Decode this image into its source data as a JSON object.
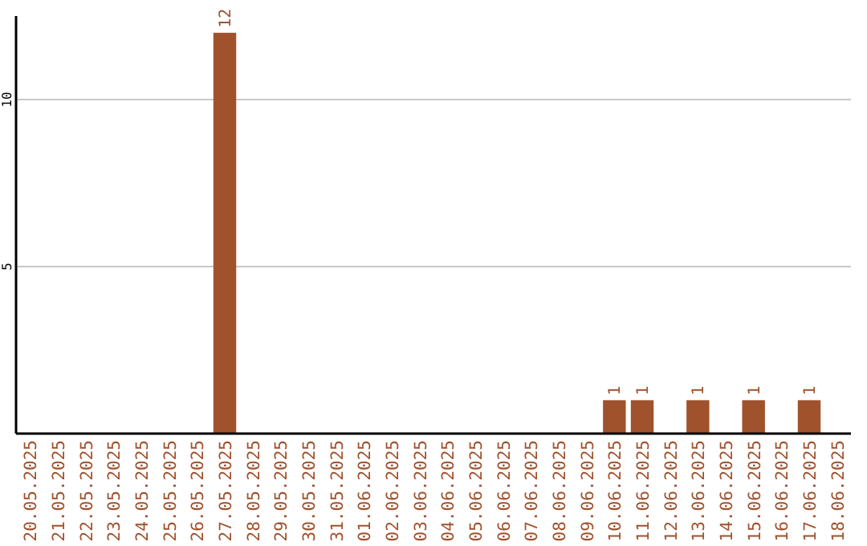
{
  "chart_data": {
    "type": "bar",
    "categories": [
      "20.05.2025",
      "21.05.2025",
      "22.05.2025",
      "23.05.2025",
      "24.05.2025",
      "25.05.2025",
      "26.05.2025",
      "27.05.2025",
      "28.05.2025",
      "29.05.2025",
      "30.05.2025",
      "31.05.2025",
      "01.06.2025",
      "02.06.2025",
      "03.06.2025",
      "04.06.2025",
      "05.06.2025",
      "06.06.2025",
      "07.06.2025",
      "08.06.2025",
      "09.06.2025",
      "10.06.2025",
      "11.06.2025",
      "12.06.2025",
      "13.06.2025",
      "14.06.2025",
      "15.06.2025",
      "16.06.2025",
      "17.06.2025",
      "18.06.2025"
    ],
    "values": [
      0,
      0,
      0,
      0,
      0,
      0,
      0,
      12,
      0,
      0,
      0,
      0,
      0,
      0,
      0,
      0,
      0,
      0,
      0,
      0,
      0,
      1,
      1,
      0,
      1,
      0,
      1,
      0,
      1,
      0
    ],
    "value_labels": [
      null,
      null,
      null,
      null,
      null,
      null,
      null,
      "12",
      null,
      null,
      null,
      null,
      null,
      null,
      null,
      null,
      null,
      null,
      null,
      null,
      null,
      "1",
      "1",
      null,
      "1",
      null,
      "1",
      null,
      "1",
      null
    ],
    "color": "#a0522d",
    "ylim": [
      0,
      12.5
    ],
    "yticks": [
      5,
      10
    ],
    "grid": "y"
  }
}
